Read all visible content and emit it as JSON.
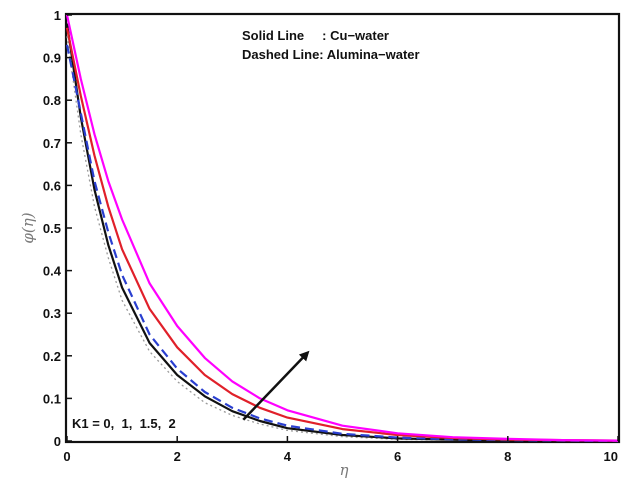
{
  "chart_data": {
    "type": "line",
    "title": "",
    "xlabel": "η",
    "ylabel": "φ(η)",
    "xlim": [
      0,
      10
    ],
    "ylim": [
      0,
      1
    ],
    "xticks": [
      "0",
      "2",
      "4",
      "6",
      "8",
      "10"
    ],
    "yticks": [
      "0",
      "0.1",
      "0.2",
      "0.3",
      "0.4",
      "0.5",
      "0.6",
      "0.7",
      "0.8",
      "0.9",
      "1"
    ],
    "grid": false,
    "legend_text": {
      "solid": "Solid Line     : Cu−water",
      "dashed": "Dashed Line: Alumina−water"
    },
    "annotation": "K1 = 0,  1,  1.5,  2",
    "series": [
      {
        "style": "solid",
        "color": "#9a9a9a",
        "dash": "dotted",
        "x": [
          0,
          0.25,
          0.5,
          0.75,
          1,
          1.5,
          2,
          2.5,
          3,
          3.5,
          4,
          5,
          6,
          7,
          8,
          9,
          10
        ],
        "y": [
          0.95,
          0.72,
          0.55,
          0.43,
          0.33,
          0.21,
          0.14,
          0.09,
          0.06,
          0.04,
          0.025,
          0.01,
          0.004,
          0.002,
          0.001,
          0.0,
          0.0
        ]
      },
      {
        "style": "solid",
        "color": "#111111",
        "x": [
          0,
          0.25,
          0.5,
          0.75,
          1,
          1.5,
          2,
          2.5,
          3,
          3.5,
          4,
          5,
          6,
          7,
          8,
          9,
          10
        ],
        "y": [
          0.98,
          0.76,
          0.59,
          0.46,
          0.36,
          0.23,
          0.155,
          0.105,
          0.07,
          0.047,
          0.03,
          0.014,
          0.006,
          0.003,
          0.001,
          0.0,
          0.0
        ]
      },
      {
        "style": "dashed",
        "color": "#2a3fd0",
        "x": [
          0,
          0.25,
          0.5,
          0.75,
          1,
          1.5,
          2,
          2.5,
          3,
          3.5,
          4,
          5,
          6,
          7,
          8,
          9,
          10
        ],
        "y": [
          0.93,
          0.77,
          0.61,
          0.49,
          0.39,
          0.25,
          0.17,
          0.115,
          0.078,
          0.053,
          0.036,
          0.017,
          0.008,
          0.004,
          0.002,
          0.001,
          0.0
        ]
      },
      {
        "style": "solid",
        "color": "#e0202a",
        "x": [
          0,
          0.25,
          0.5,
          0.75,
          1,
          1.5,
          2,
          2.5,
          3,
          3.5,
          4,
          5,
          6,
          7,
          8,
          9,
          10
        ],
        "y": [
          0.97,
          0.81,
          0.67,
          0.55,
          0.45,
          0.31,
          0.22,
          0.155,
          0.11,
          0.078,
          0.055,
          0.028,
          0.014,
          0.007,
          0.003,
          0.002,
          0.001
        ]
      },
      {
        "style": "solid",
        "color": "#ff00ff",
        "x": [
          0,
          0.25,
          0.5,
          0.75,
          1,
          1.5,
          2,
          2.5,
          3,
          3.5,
          4,
          5,
          6,
          7,
          8,
          9,
          10
        ],
        "y": [
          1.0,
          0.85,
          0.72,
          0.61,
          0.52,
          0.37,
          0.27,
          0.195,
          0.14,
          0.1,
          0.072,
          0.036,
          0.018,
          0.009,
          0.005,
          0.002,
          0.001
        ]
      }
    ],
    "arrow": {
      "from": [
        3.2,
        0.05
      ],
      "to": [
        4.35,
        0.205
      ]
    }
  }
}
